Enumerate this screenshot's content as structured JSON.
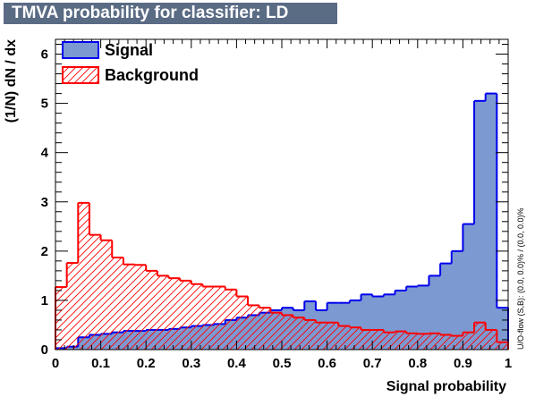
{
  "title": "TMVA probability for classifier: LD",
  "overflow_note": "U/O-flow (S,B): (0.0, 0.0)% / (0.0, 0.0)%",
  "colors": {
    "title_bg": "#5a6b84",
    "signal_fill": "#7d99d1",
    "signal_line": "#0000ee",
    "background_line": "#ff0000"
  },
  "chart_data": {
    "type": "histogram",
    "xlabel": "Signal probability",
    "ylabel": "(1/N) dN / dx",
    "xlim": [
      0,
      1
    ],
    "ylim": [
      0,
      6.3
    ],
    "x_ticks": [
      "0",
      "0.1",
      "0.2",
      "0.3",
      "0.4",
      "0.5",
      "0.6",
      "0.7",
      "0.8",
      "0.9",
      "1"
    ],
    "y_ticks": [
      "0",
      "1",
      "2",
      "3",
      "4",
      "5",
      "6"
    ],
    "legend_position": "top-left",
    "bin_edges_start": 0.0,
    "bin_width": 0.025,
    "series": [
      {
        "name": "Signal",
        "style": "filled",
        "values": [
          0.03,
          0.06,
          0.25,
          0.3,
          0.32,
          0.35,
          0.38,
          0.38,
          0.4,
          0.4,
          0.42,
          0.45,
          0.48,
          0.5,
          0.52,
          0.6,
          0.65,
          0.7,
          0.75,
          0.8,
          0.85,
          0.8,
          0.98,
          0.8,
          0.95,
          0.95,
          1.0,
          1.12,
          1.08,
          1.12,
          1.2,
          1.28,
          1.3,
          1.5,
          1.75,
          2.0,
          2.55,
          5.05,
          5.2,
          0.85
        ]
      },
      {
        "name": "Background",
        "style": "hatched",
        "values": [
          1.27,
          1.76,
          2.98,
          2.33,
          2.22,
          1.87,
          1.73,
          1.72,
          1.6,
          1.5,
          1.45,
          1.4,
          1.33,
          1.28,
          1.28,
          1.22,
          1.08,
          0.9,
          0.85,
          0.75,
          0.7,
          0.65,
          0.6,
          0.55,
          0.55,
          0.48,
          0.45,
          0.4,
          0.4,
          0.35,
          0.37,
          0.33,
          0.32,
          0.33,
          0.3,
          0.28,
          0.35,
          0.55,
          0.4,
          0.15
        ]
      }
    ]
  }
}
